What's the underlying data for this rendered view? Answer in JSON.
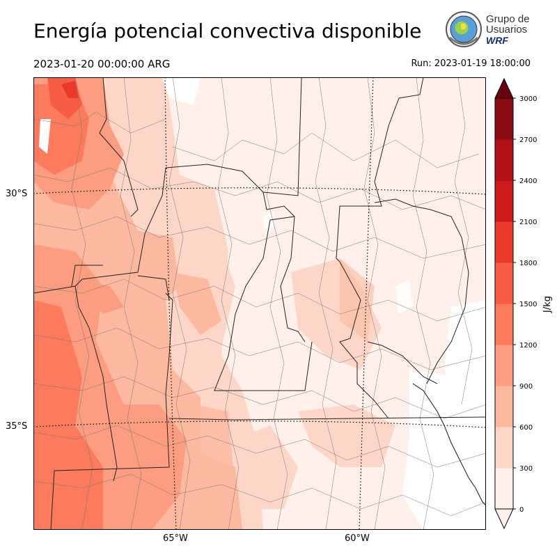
{
  "header": {
    "title": "Energía potencial convectiva disponible",
    "valid_time": "2023-01-20 00:00:00 ARG",
    "run_time": "Run: 2023-01-19 18:00:00"
  },
  "logo": {
    "line1": "Grupo de",
    "line2": "Usuarios",
    "line3": "WRF"
  },
  "map": {
    "lat_labels": [
      "30°S",
      "35°S"
    ],
    "lon_labels": [
      "65°W",
      "60°W"
    ]
  },
  "colorbar": {
    "unit_label": "J/kg",
    "ticks": [
      "0",
      "300",
      "600",
      "900",
      "1200",
      "1500",
      "1800",
      "2100",
      "2400",
      "2700",
      "3000"
    ],
    "colors": [
      "#fff0eb",
      "#fdd6c8",
      "#fcb9a0",
      "#fc9c80",
      "#fb7b5c",
      "#f65d44",
      "#e8392b",
      "#cd1b1d",
      "#b11217",
      "#8a0b12",
      "#6b0010"
    ]
  }
}
